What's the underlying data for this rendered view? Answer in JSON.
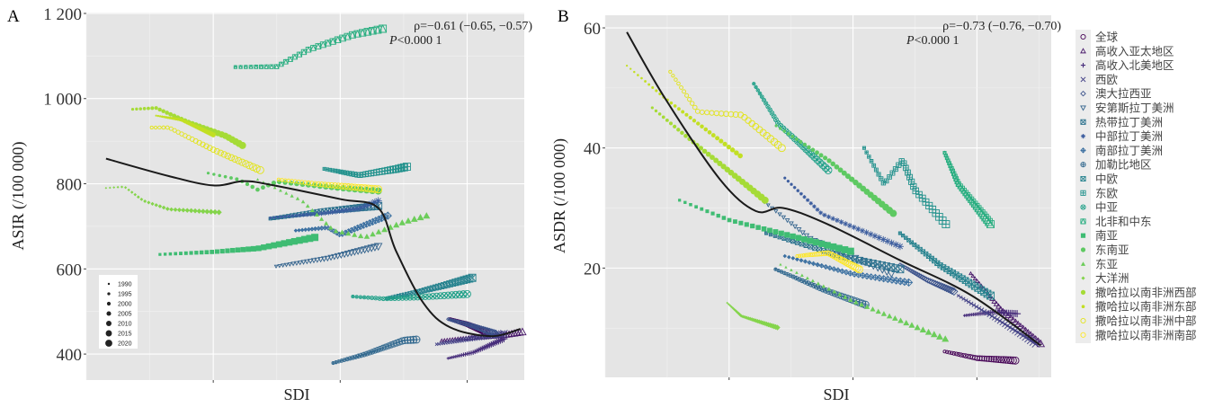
{
  "colors": {
    "panel_bg": "#e5e5e5",
    "grid_major": "#ffffff",
    "grid_minor": "#f0f0f0",
    "fit_line": "#1a1a1a"
  },
  "legend_size": {
    "items": [
      "1990",
      "1995",
      "2000",
      "2005",
      "2010",
      "2015",
      "2020"
    ]
  },
  "legend_region": {
    "items": [
      {
        "label": "全球",
        "shape": "circle",
        "color": "#440154"
      },
      {
        "label": "高收入亚太地区",
        "shape": "triangle",
        "color": "#48186a"
      },
      {
        "label": "高收入北美地区",
        "shape": "plus",
        "color": "#472d7b"
      },
      {
        "label": "西欧",
        "shape": "cross",
        "color": "#424086"
      },
      {
        "label": "澳大拉西亚",
        "shape": "diamond",
        "color": "#3b528b"
      },
      {
        "label": "安第斯拉丁美洲",
        "shape": "triangle-down",
        "color": "#33638d"
      },
      {
        "label": "热带拉丁美洲",
        "shape": "square-cross",
        "color": "#2c728e"
      },
      {
        "label": "中部拉丁美洲",
        "shape": "asterisk",
        "color": "#3b5c9e"
      },
      {
        "label": "南部拉丁美洲",
        "shape": "diamond-plus",
        "color": "#3a6fa0"
      },
      {
        "label": "加勒比地区",
        "shape": "circle-plus",
        "color": "#31688e"
      },
      {
        "label": "中欧",
        "shape": "square-x",
        "color": "#26828e"
      },
      {
        "label": "东欧",
        "shape": "square-plus",
        "color": "#21918c"
      },
      {
        "label": "中亚",
        "shape": "circle-cross",
        "color": "#1fa088"
      },
      {
        "label": "北非和中东",
        "shape": "square-tri",
        "color": "#28ae80"
      },
      {
        "label": "南亚",
        "shape": "square-filled",
        "color": "#3fbc73"
      },
      {
        "label": "东南亚",
        "shape": "circle-filled",
        "color": "#5ec962"
      },
      {
        "label": "东亚",
        "shape": "triangle-filled",
        "color": "#6ccd5a"
      },
      {
        "label": "大洋洲",
        "shape": "diamond-filled",
        "color": "#84d44b"
      },
      {
        "label": "撒哈拉以南非洲西部",
        "shape": "circle-big",
        "color": "#a5db36"
      },
      {
        "label": "撒哈拉以南非洲东部",
        "shape": "dot-small",
        "color": "#c2df23"
      },
      {
        "label": "撒哈拉以南非洲中部",
        "shape": "circle-open",
        "color": "#e2e418"
      },
      {
        "label": "撒哈拉以南非洲南部",
        "shape": "circle-open",
        "color": "#fde725"
      }
    ]
  },
  "chart_data": [
    {
      "panel": "A",
      "type": "scatter",
      "xlabel": "SDI",
      "ylabel": "ASIR (/100 000)",
      "xlim": [
        0.2,
        0.89
      ],
      "ylim": [
        339,
        1202
      ],
      "xticks": [
        0.4,
        0.6,
        0.8
      ],
      "yticks": [
        400,
        600,
        800,
        1000,
        1200
      ],
      "ytick_labels": [
        "400",
        "600",
        "800",
        "1 000",
        "1 200"
      ],
      "grid": true,
      "annotation": {
        "rho": "ρ=−0.61 (−0.65, −0.57)",
        "p": "P<0.000 1",
        "placement": "top-right"
      },
      "size_legend_placement": "bottom-left",
      "fit_line": [
        [
          0.231,
          859
        ],
        [
          0.33,
          818
        ],
        [
          0.4,
          796
        ],
        [
          0.447,
          806
        ],
        [
          0.489,
          798
        ],
        [
          0.6,
          764
        ],
        [
          0.66,
          743
        ],
        [
          0.688,
          642
        ],
        [
          0.731,
          520
        ],
        [
          0.773,
          463
        ],
        [
          0.837,
          442
        ],
        [
          0.884,
          459
        ]
      ],
      "series": [
        {
          "name": "全球",
          "anchors": [
            [
              0.773,
              482
            ],
            [
              0.8,
              470
            ],
            [
              0.83,
              452
            ]
          ]
        },
        {
          "name": "高收入亚太地区",
          "anchors": [
            [
              0.76,
              432
            ],
            [
              0.82,
              440
            ],
            [
              0.86,
              445
            ],
            [
              0.887,
              452
            ]
          ]
        },
        {
          "name": "高收入北美地区",
          "anchors": [
            [
              0.77,
              390
            ],
            [
              0.81,
              404
            ],
            [
              0.858,
              436
            ]
          ]
        },
        {
          "name": "西欧",
          "anchors": [
            [
              0.752,
              423
            ],
            [
              0.8,
              435
            ],
            [
              0.858,
              448
            ]
          ]
        },
        {
          "name": "澳大拉西亚",
          "anchors": [
            [
              0.77,
              482
            ],
            [
              0.8,
              470
            ],
            [
              0.845,
              448
            ]
          ]
        },
        {
          "name": "安第斯拉丁美洲",
          "anchors": [
            [
              0.499,
              606
            ],
            [
              0.58,
              625
            ],
            [
              0.66,
              653
            ]
          ]
        },
        {
          "name": "热带拉丁美洲",
          "anchors": [
            [
              0.49,
              718
            ],
            [
              0.57,
              735
            ],
            [
              0.66,
              748
            ]
          ]
        },
        {
          "name": "中部拉丁美洲",
          "anchors": [
            [
              0.49,
              720
            ],
            [
              0.57,
              730
            ],
            [
              0.63,
              742
            ],
            [
              0.66,
              760
            ]
          ]
        },
        {
          "name": "南部拉丁美洲",
          "anchors": [
            [
              0.53,
              690
            ],
            [
              0.58,
              697
            ],
            [
              0.6,
              680
            ],
            [
              0.675,
              725
            ]
          ]
        },
        {
          "name": "加勒比地区",
          "anchors": [
            [
              0.589,
              379
            ],
            [
              0.64,
              400
            ],
            [
              0.7,
              432
            ],
            [
              0.72,
              434
            ]
          ]
        },
        {
          "name": "中欧",
          "anchors": [
            [
              0.674,
              531
            ],
            [
              0.72,
              545
            ],
            [
              0.76,
              560
            ],
            [
              0.808,
              579
            ]
          ]
        },
        {
          "name": "东欧",
          "anchors": [
            [
              0.575,
              835
            ],
            [
              0.63,
              820
            ],
            [
              0.69,
              835
            ],
            [
              0.705,
              840
            ]
          ]
        },
        {
          "name": "中亚",
          "anchors": [
            [
              0.62,
              535
            ],
            [
              0.67,
              530
            ],
            [
              0.72,
              533
            ],
            [
              0.8,
              541
            ]
          ]
        },
        {
          "name": "北非和中东",
          "anchors": [
            [
              0.435,
              1074
            ],
            [
              0.5,
              1075
            ],
            [
              0.55,
              1115
            ],
            [
              0.62,
              1150
            ],
            [
              0.667,
              1164
            ]
          ]
        },
        {
          "name": "南亚",
          "anchors": [
            [
              0.316,
              634
            ],
            [
              0.4,
              640
            ],
            [
              0.47,
              648
            ],
            [
              0.56,
              674
            ]
          ]
        },
        {
          "name": "东南亚",
          "anchors": [
            [
              0.392,
              825
            ],
            [
              0.44,
              810
            ],
            [
              0.47,
              786
            ],
            [
              0.5,
              805
            ],
            [
              0.6,
              790
            ],
            [
              0.66,
              783
            ]
          ]
        },
        {
          "name": "东亚",
          "anchors": [
            [
              0.47,
              810
            ],
            [
              0.54,
              760
            ],
            [
              0.59,
              690
            ],
            [
              0.64,
              675
            ],
            [
              0.7,
              710
            ],
            [
              0.736,
              725
            ]
          ]
        },
        {
          "name": "大洋洲",
          "anchors": [
            [
              0.231,
              790
            ],
            [
              0.26,
              793
            ],
            [
              0.29,
              760
            ],
            [
              0.33,
              740
            ],
            [
              0.409,
              733
            ]
          ]
        },
        {
          "name": "撒哈拉以南非洲西部",
          "anchors": [
            [
              0.273,
              975
            ],
            [
              0.31,
              978
            ],
            [
              0.36,
              945
            ],
            [
              0.42,
              912
            ],
            [
              0.446,
              890
            ]
          ]
        },
        {
          "name": "撒哈拉以南非洲东部",
          "anchors": [
            [
              0.31,
              960
            ],
            [
              0.35,
              950
            ],
            [
              0.4,
              915
            ]
          ]
        },
        {
          "name": "撒哈拉以南非洲中部",
          "anchors": [
            [
              0.303,
              932
            ],
            [
              0.33,
              932
            ],
            [
              0.4,
              880
            ],
            [
              0.474,
              832
            ]
          ]
        },
        {
          "name": "撒哈拉以南非洲南部",
          "anchors": [
            [
              0.503,
              810
            ],
            [
              0.56,
              800
            ],
            [
              0.66,
              787
            ]
          ]
        }
      ]
    },
    {
      "panel": "B",
      "type": "scatter",
      "xlabel": "SDI",
      "ylabel": "ASDR (/100 000)",
      "xlim": [
        0.2,
        0.92
      ],
      "ylim": [
        1.8,
        62.1
      ],
      "xticks": [
        0.4,
        0.6,
        0.8
      ],
      "yticks": [
        20,
        40,
        60
      ],
      "ytick_labels": [
        "20",
        "40",
        "60"
      ],
      "grid": true,
      "annotation": {
        "rho": "ρ=−0.73 (−0.76, −0.70)",
        "p": "P<0.000 1",
        "placement": "top-right"
      },
      "legend_placement": "right",
      "fit_line": [
        [
          0.235,
          59.3
        ],
        [
          0.297,
          48.2
        ],
        [
          0.385,
          34.8
        ],
        [
          0.443,
          29.5
        ],
        [
          0.487,
          30.0
        ],
        [
          0.559,
          27.3
        ],
        [
          0.676,
          21.3
        ],
        [
          0.792,
          15.4
        ],
        [
          0.903,
          7.1
        ]
      ],
      "series": [
        {
          "name": "全球",
          "anchors": [
            [
              0.748,
              6.1
            ],
            [
              0.8,
              5.0
            ],
            [
              0.862,
              4.6
            ]
          ]
        },
        {
          "name": "高收入亚太地区",
          "anchors": [
            [
              0.79,
              19.1
            ],
            [
              0.84,
              13.0
            ],
            [
              0.903,
              7.4
            ]
          ]
        },
        {
          "name": "高收入北美地区",
          "anchors": [
            [
              0.78,
              12.1
            ],
            [
              0.83,
              12.7
            ],
            [
              0.865,
              12.4
            ]
          ]
        },
        {
          "name": "西欧",
          "anchors": [
            [
              0.77,
              15.4
            ],
            [
              0.84,
              11.0
            ],
            [
              0.895,
              7.4
            ]
          ]
        },
        {
          "name": "澳大拉西亚",
          "anchors": [
            [
              0.676,
              20.6
            ],
            [
              0.72,
              18.0
            ],
            [
              0.763,
              16.1
            ]
          ]
        },
        {
          "name": "安第斯拉丁美洲",
          "anchors": [
            [
              0.457,
              31.0
            ],
            [
              0.53,
              25.0
            ],
            [
              0.662,
              19.1
            ]
          ]
        },
        {
          "name": "热带拉丁美洲",
          "anchors": [
            [
              0.46,
              25.8
            ],
            [
              0.58,
              22.0
            ],
            [
              0.676,
              19.8
            ]
          ]
        },
        {
          "name": "中部拉丁美洲",
          "anchors": [
            [
              0.49,
              35.0
            ],
            [
              0.55,
              29.0
            ],
            [
              0.676,
              23.6
            ]
          ]
        },
        {
          "name": "南部拉丁美洲",
          "anchors": [
            [
              0.49,
              22.0
            ],
            [
              0.6,
              19.0
            ],
            [
              0.69,
              17.6
            ]
          ]
        },
        {
          "name": "加勒比地区",
          "anchors": [
            [
              0.475,
              19.8
            ],
            [
              0.55,
              16.5
            ],
            [
              0.62,
              13.9
            ]
          ]
        },
        {
          "name": "中欧",
          "anchors": [
            [
              0.676,
              25.8
            ],
            [
              0.74,
              20.5
            ],
            [
              0.822,
              15.4
            ]
          ]
        },
        {
          "name": "东欧",
          "anchors": [
            [
              0.618,
              40.0
            ],
            [
              0.65,
              34.0
            ],
            [
              0.68,
              38.0
            ],
            [
              0.7,
              33.0
            ],
            [
              0.75,
              27.3
            ]
          ]
        },
        {
          "name": "中亚",
          "anchors": [
            [
              0.44,
              50.7
            ],
            [
              0.48,
              44.0
            ],
            [
              0.56,
              36.3
            ]
          ]
        },
        {
          "name": "北非和中东",
          "anchors": [
            [
              0.748,
              39.2
            ],
            [
              0.77,
              34.0
            ],
            [
              0.822,
              27.3
            ]
          ]
        },
        {
          "name": "南亚",
          "anchors": [
            [
              0.32,
              31.3
            ],
            [
              0.4,
              28.0
            ],
            [
              0.476,
              26.0
            ],
            [
              0.596,
              22.8
            ]
          ]
        },
        {
          "name": "东南亚",
          "anchors": [
            [
              0.476,
              43.7
            ],
            [
              0.56,
              38.0
            ],
            [
              0.665,
              29.1
            ]
          ]
        },
        {
          "name": "东亚",
          "anchors": [
            [
              0.483,
              20.6
            ],
            [
              0.6,
              14.5
            ],
            [
              0.749,
              8.2
            ]
          ]
        },
        {
          "name": "大洋洲",
          "anchors": [
            [
              0.397,
              14.2
            ],
            [
              0.42,
              12.0
            ],
            [
              0.478,
              10.1
            ]
          ]
        },
        {
          "name": "撒哈拉以南非洲西部",
          "anchors": [
            [
              0.276,
              46.7
            ],
            [
              0.33,
              42.0
            ],
            [
              0.378,
              38.0
            ],
            [
              0.458,
              31.3
            ]
          ]
        },
        {
          "name": "撒哈拉以南非洲东部",
          "anchors": [
            [
              0.235,
              53.7
            ],
            [
              0.3,
              48.0
            ],
            [
              0.418,
              38.7
            ]
          ]
        },
        {
          "name": "撒哈拉以南非洲中部",
          "anchors": [
            [
              0.305,
              52.7
            ],
            [
              0.35,
              46.0
            ],
            [
              0.42,
              45.5
            ],
            [
              0.485,
              40.0
            ]
          ]
        },
        {
          "name": "撒哈拉以南非洲南部",
          "anchors": [
            [
              0.51,
              22.0
            ],
            [
              0.56,
              22.5
            ],
            [
              0.61,
              19.8
            ]
          ]
        }
      ]
    }
  ]
}
